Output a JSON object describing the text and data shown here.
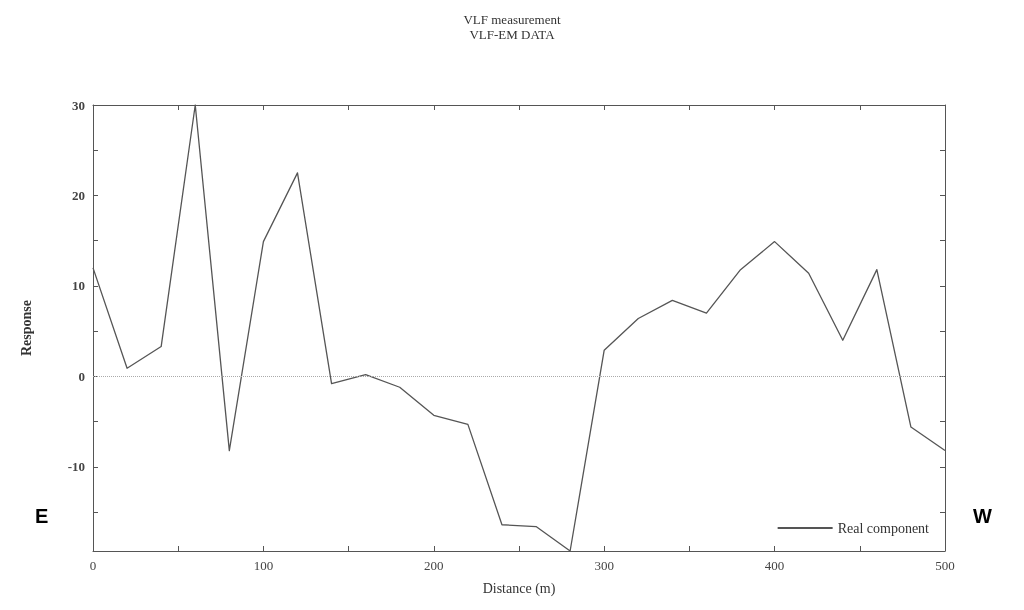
{
  "chart_data": {
    "type": "line",
    "title": "VLF measurement",
    "subtitle": "VLF-EM DATA",
    "xlabel": "Distance (m)",
    "ylabel": "Response",
    "x": [
      0,
      20,
      40,
      60,
      80,
      100,
      120,
      140,
      160,
      180,
      200,
      220,
      240,
      260,
      280,
      300,
      320,
      340,
      360,
      380,
      400,
      420,
      440,
      460,
      480,
      500
    ],
    "series": [
      {
        "name": "Real component",
        "color": "#555555",
        "values": [
          12.0,
          0.9,
          3.3,
          30,
          -8.2,
          14.9,
          22.5,
          -0.8,
          0.2,
          -1.2,
          -4.3,
          -5.3,
          -16.4,
          -16.6,
          -19.3,
          2.9,
          6.4,
          8.4,
          7.0,
          11.8,
          14.9,
          11.4,
          4.0,
          11.8,
          -5.6,
          -8.2
        ]
      }
    ],
    "xlim": [
      0,
      500
    ],
    "xticks": [
      0,
      {
        "value": 50,
        "label": null
      },
      100,
      {
        "value": 150,
        "label": null
      },
      200,
      {
        "value": 250,
        "label": null
      },
      300,
      {
        "value": 350,
        "label": null
      },
      400,
      {
        "value": 450,
        "label": null
      },
      500
    ],
    "ylim": [
      -19.3,
      30
    ],
    "yticks": [
      {
        "value": -15,
        "label": null
      },
      -10,
      {
        "value": -5,
        "label": null
      },
      0,
      {
        "value": 5,
        "label": null
      },
      10,
      {
        "value": 15,
        "label": null
      },
      20,
      {
        "value": 25,
        "label": null
      },
      30
    ],
    "ref_lines": [
      {
        "axis": "y",
        "value": 0,
        "label": null,
        "color": "#aaaaaa",
        "line_style": "dotted"
      }
    ],
    "legend": "bottom right",
    "grid": false,
    "line_style": "solid",
    "marker": "none",
    "annotations": [
      "E",
      "W"
    ]
  }
}
